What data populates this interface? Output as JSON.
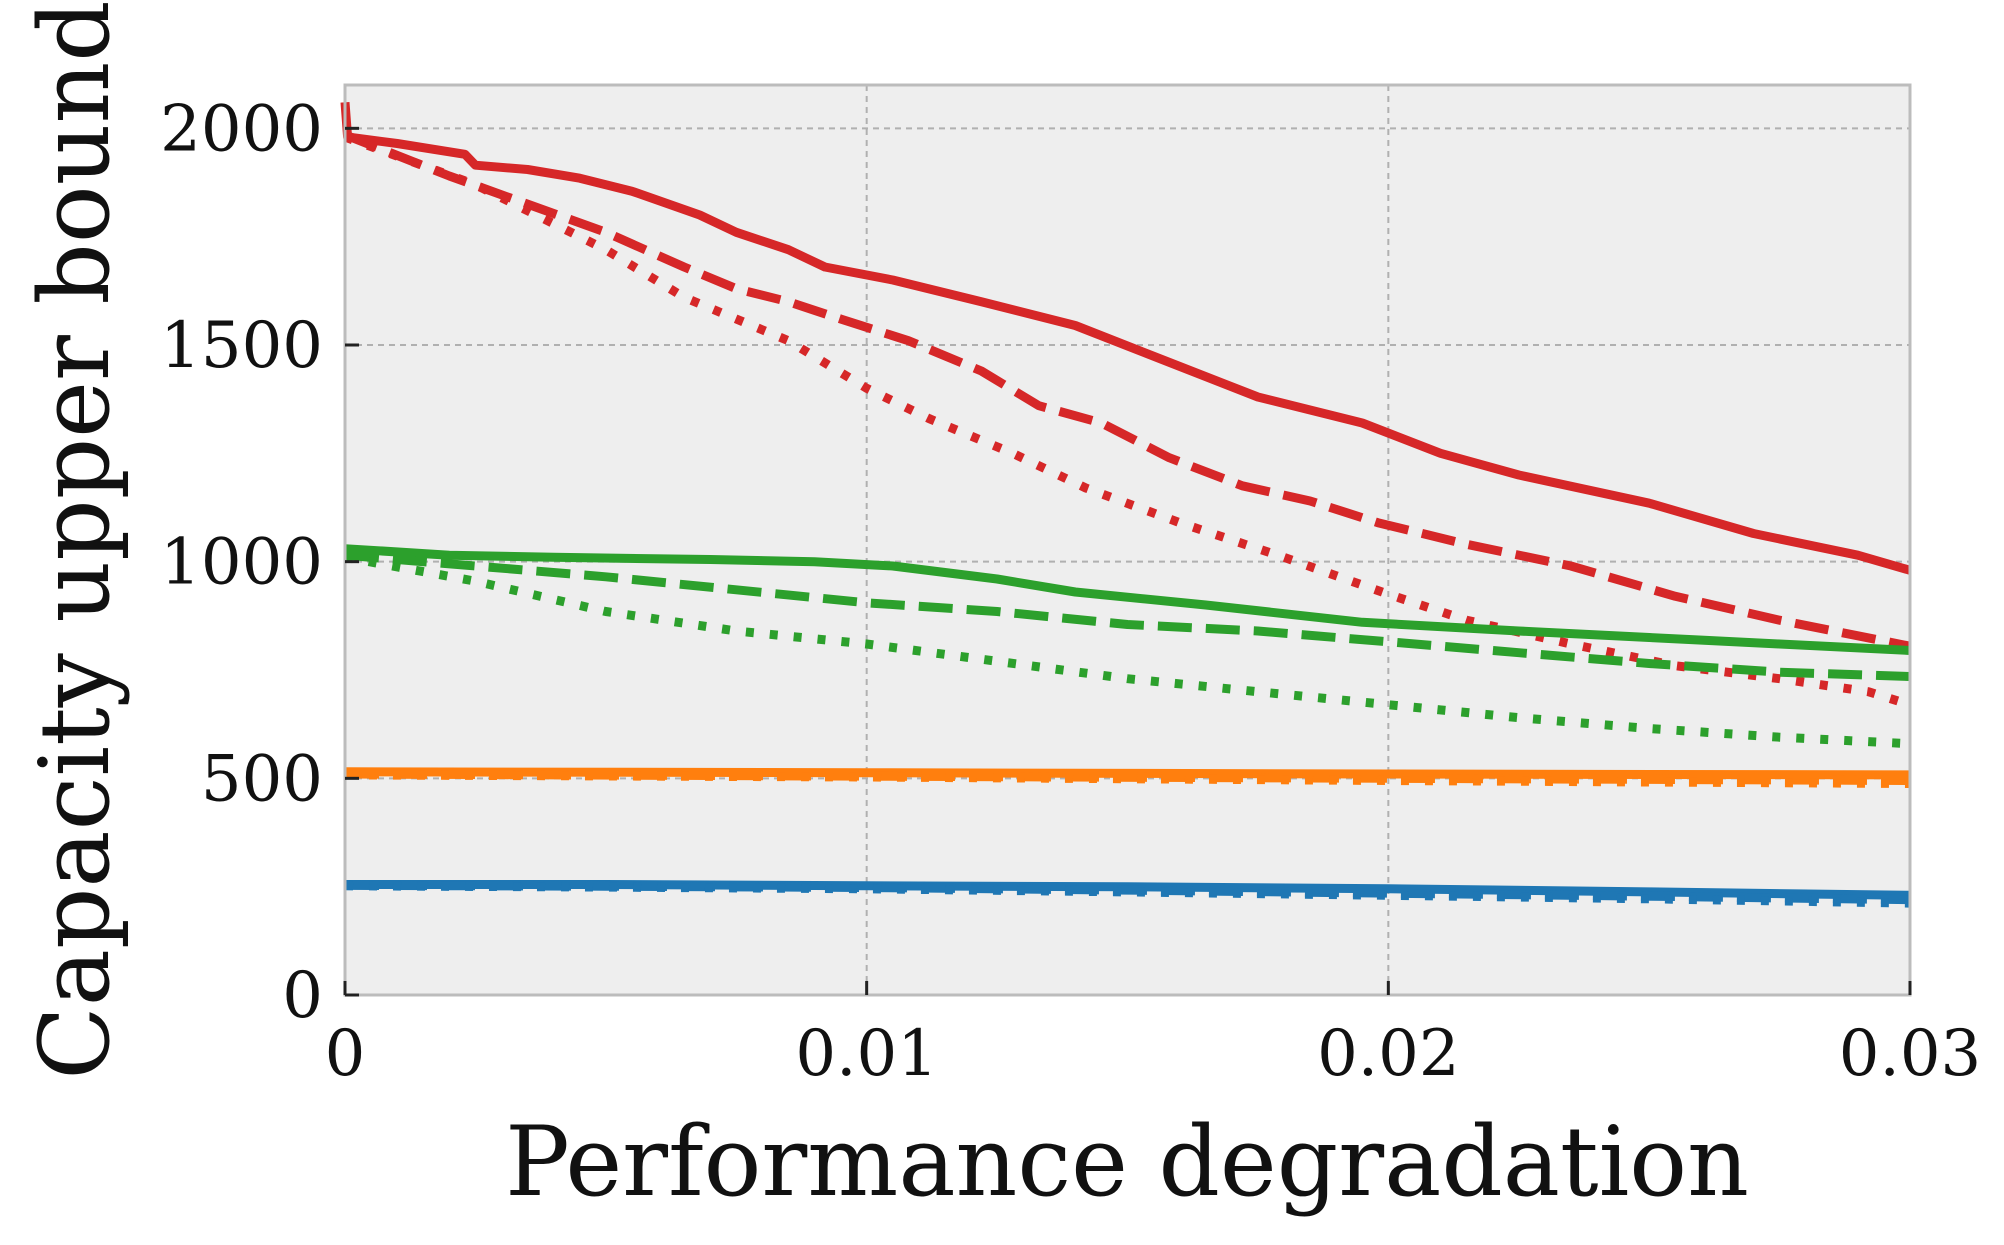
{
  "chart_data": {
    "type": "line",
    "title": "",
    "xlabel": "Performance degradation",
    "ylabel": "Capacity upper bound",
    "xlim": [
      0,
      0.03
    ],
    "ylim": [
      0,
      2100
    ],
    "grid": true,
    "x_ticks": [
      0,
      0.01,
      0.02,
      0.03
    ],
    "x_tick_labels": [
      "0",
      "0.01",
      "0.02",
      "0.03"
    ],
    "y_ticks": [
      0,
      500,
      1000,
      1500,
      2000
    ],
    "y_tick_labels": [
      "0",
      "500",
      "1000",
      "1500",
      "2000"
    ],
    "colors": {
      "red": "#d62728",
      "green": "#2ca02c",
      "orange": "#ff7f0e",
      "blue": "#1f77b4",
      "plot_bg": "#eeeeee",
      "grid": "#b0b0b0",
      "frame": "#bcbcbc"
    },
    "series": [
      {
        "name": "red-solid",
        "color": "red",
        "style": "solid",
        "points": [
          [
            0,
            2060
          ],
          [
            5e-05,
            1980
          ],
          [
            0.001,
            1965
          ],
          [
            0.0023,
            1940
          ],
          [
            0.0025,
            1915
          ],
          [
            0.0035,
            1905
          ],
          [
            0.0045,
            1885
          ],
          [
            0.0055,
            1855
          ],
          [
            0.0068,
            1800
          ],
          [
            0.0075,
            1760
          ],
          [
            0.0085,
            1720
          ],
          [
            0.0092,
            1680
          ],
          [
            0.0105,
            1650
          ],
          [
            0.0122,
            1600
          ],
          [
            0.014,
            1545
          ],
          [
            0.0158,
            1460
          ],
          [
            0.0175,
            1380
          ],
          [
            0.0195,
            1320
          ],
          [
            0.021,
            1250
          ],
          [
            0.0225,
            1200
          ],
          [
            0.025,
            1135
          ],
          [
            0.027,
            1065
          ],
          [
            0.029,
            1015
          ],
          [
            0.03,
            980
          ]
        ]
      },
      {
        "name": "red-dashed",
        "color": "red",
        "style": "dashed",
        "points": [
          [
            0,
            1985
          ],
          [
            0.002,
            1890
          ],
          [
            0.005,
            1760
          ],
          [
            0.0065,
            1680
          ],
          [
            0.0075,
            1630
          ],
          [
            0.0085,
            1600
          ],
          [
            0.0095,
            1560
          ],
          [
            0.0108,
            1510
          ],
          [
            0.0122,
            1440
          ],
          [
            0.0133,
            1360
          ],
          [
            0.0145,
            1320
          ],
          [
            0.0158,
            1240
          ],
          [
            0.0172,
            1175
          ],
          [
            0.0185,
            1140
          ],
          [
            0.0198,
            1090
          ],
          [
            0.0215,
            1040
          ],
          [
            0.0235,
            990
          ],
          [
            0.0255,
            920
          ],
          [
            0.0275,
            865
          ],
          [
            0.03,
            805
          ]
        ]
      },
      {
        "name": "red-dotted",
        "color": "red",
        "style": "dotted",
        "points": [
          [
            0,
            1980
          ],
          [
            0.0025,
            1870
          ],
          [
            0.005,
            1720
          ],
          [
            0.0065,
            1610
          ],
          [
            0.0085,
            1510
          ],
          [
            0.01,
            1400
          ],
          [
            0.0112,
            1330
          ],
          [
            0.0128,
            1250
          ],
          [
            0.0142,
            1170
          ],
          [
            0.016,
            1090
          ],
          [
            0.018,
            1010
          ],
          [
            0.02,
            925
          ],
          [
            0.0215,
            865
          ],
          [
            0.0235,
            810
          ],
          [
            0.0255,
            760
          ],
          [
            0.0275,
            730
          ],
          [
            0.0292,
            700
          ],
          [
            0.03,
            670
          ]
        ]
      },
      {
        "name": "green-solid",
        "color": "green",
        "style": "solid",
        "points": [
          [
            0,
            1030
          ],
          [
            0.002,
            1015
          ],
          [
            0.004,
            1010
          ],
          [
            0.007,
            1005
          ],
          [
            0.009,
            1000
          ],
          [
            0.0105,
            990
          ],
          [
            0.0125,
            960
          ],
          [
            0.014,
            930
          ],
          [
            0.0165,
            900
          ],
          [
            0.0195,
            860
          ],
          [
            0.0225,
            840
          ],
          [
            0.025,
            825
          ],
          [
            0.0275,
            810
          ],
          [
            0.03,
            795
          ]
        ]
      },
      {
        "name": "green-dashed",
        "color": "green",
        "style": "dashed",
        "points": [
          [
            0,
            1015
          ],
          [
            0.0025,
            990
          ],
          [
            0.005,
            965
          ],
          [
            0.0075,
            935
          ],
          [
            0.01,
            905
          ],
          [
            0.0125,
            885
          ],
          [
            0.015,
            855
          ],
          [
            0.0175,
            840
          ],
          [
            0.02,
            815
          ],
          [
            0.0225,
            790
          ],
          [
            0.025,
            765
          ],
          [
            0.0275,
            745
          ],
          [
            0.03,
            735
          ]
        ]
      },
      {
        "name": "green-dotted",
        "color": "green",
        "style": "dotted",
        "points": [
          [
            0,
            1010
          ],
          [
            0.0025,
            955
          ],
          [
            0.005,
            885
          ],
          [
            0.0075,
            840
          ],
          [
            0.01,
            810
          ],
          [
            0.0125,
            770
          ],
          [
            0.015,
            730
          ],
          [
            0.0175,
            700
          ],
          [
            0.02,
            670
          ],
          [
            0.0225,
            640
          ],
          [
            0.025,
            615
          ],
          [
            0.0275,
            595
          ],
          [
            0.03,
            580
          ]
        ]
      },
      {
        "name": "orange-solid",
        "color": "orange",
        "style": "solid",
        "points": [
          [
            0,
            515
          ],
          [
            0.01,
            513
          ],
          [
            0.02,
            510
          ],
          [
            0.03,
            508
          ]
        ]
      },
      {
        "name": "orange-dashed",
        "color": "orange",
        "style": "dashed",
        "points": [
          [
            0,
            510
          ],
          [
            0.01,
            505
          ],
          [
            0.02,
            500
          ],
          [
            0.03,
            495
          ]
        ]
      },
      {
        "name": "orange-dotted",
        "color": "orange",
        "style": "dotted",
        "points": [
          [
            0,
            508
          ],
          [
            0.01,
            503
          ],
          [
            0.02,
            495
          ],
          [
            0.03,
            488
          ]
        ]
      },
      {
        "name": "blue-solid",
        "color": "blue",
        "style": "solid",
        "points": [
          [
            0,
            255
          ],
          [
            0.005,
            255
          ],
          [
            0.01,
            252
          ],
          [
            0.015,
            250
          ],
          [
            0.02,
            245
          ],
          [
            0.025,
            238
          ],
          [
            0.03,
            230
          ]
        ]
      },
      {
        "name": "blue-dashed",
        "color": "blue",
        "style": "dashed",
        "points": [
          [
            0,
            253
          ],
          [
            0.005,
            251
          ],
          [
            0.01,
            248
          ],
          [
            0.015,
            242
          ],
          [
            0.02,
            235
          ],
          [
            0.025,
            228
          ],
          [
            0.03,
            220
          ]
        ]
      },
      {
        "name": "blue-dotted",
        "color": "blue",
        "style": "dotted",
        "points": [
          [
            0,
            252
          ],
          [
            0.005,
            249
          ],
          [
            0.01,
            245
          ],
          [
            0.015,
            238
          ],
          [
            0.02,
            230
          ],
          [
            0.025,
            222
          ],
          [
            0.03,
            212
          ]
        ]
      }
    ]
  }
}
